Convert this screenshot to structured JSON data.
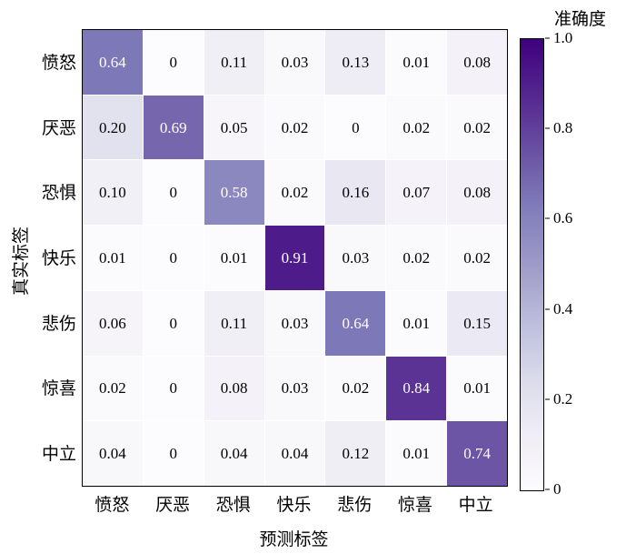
{
  "chart_data": {
    "type": "heatmap",
    "title": "",
    "xlabel": "预测标签",
    "ylabel": "真实标签",
    "colorbar_label": "准确度",
    "rows": [
      "愤怒",
      "厌恶",
      "恐惧",
      "快乐",
      "悲伤",
      "惊喜",
      "中立"
    ],
    "cols": [
      "愤怒",
      "厌恶",
      "恐惧",
      "快乐",
      "悲伤",
      "惊喜",
      "中立"
    ],
    "values": [
      [
        0.64,
        0,
        0.11,
        0.03,
        0.13,
        0.01,
        0.08
      ],
      [
        0.2,
        0.69,
        0.05,
        0.02,
        0,
        0.02,
        0.02
      ],
      [
        0.1,
        0,
        0.58,
        0.02,
        0.16,
        0.07,
        0.08
      ],
      [
        0.01,
        0,
        0.01,
        0.91,
        0.03,
        0.02,
        0.02
      ],
      [
        0.06,
        0,
        0.11,
        0.03,
        0.64,
        0.01,
        0.15
      ],
      [
        0.02,
        0,
        0.08,
        0.03,
        0.02,
        0.84,
        0.01
      ],
      [
        0.04,
        0,
        0.04,
        0.04,
        0.12,
        0.01,
        0.74
      ]
    ],
    "vmin": 0,
    "vmax": 1.0,
    "colorbar_ticks": [
      "1.0",
      "0.8",
      "0.6",
      "0.4",
      "0.2",
      "0"
    ],
    "colormap": "Purples",
    "colormap_stops": [
      "#fcfbfd",
      "#efedf5",
      "#dadaeb",
      "#bcbddc",
      "#9e9ac8",
      "#807dba",
      "#6a51a3",
      "#54278f",
      "#3f007d"
    ],
    "legend_position": "right-colorbar",
    "grid": false
  }
}
